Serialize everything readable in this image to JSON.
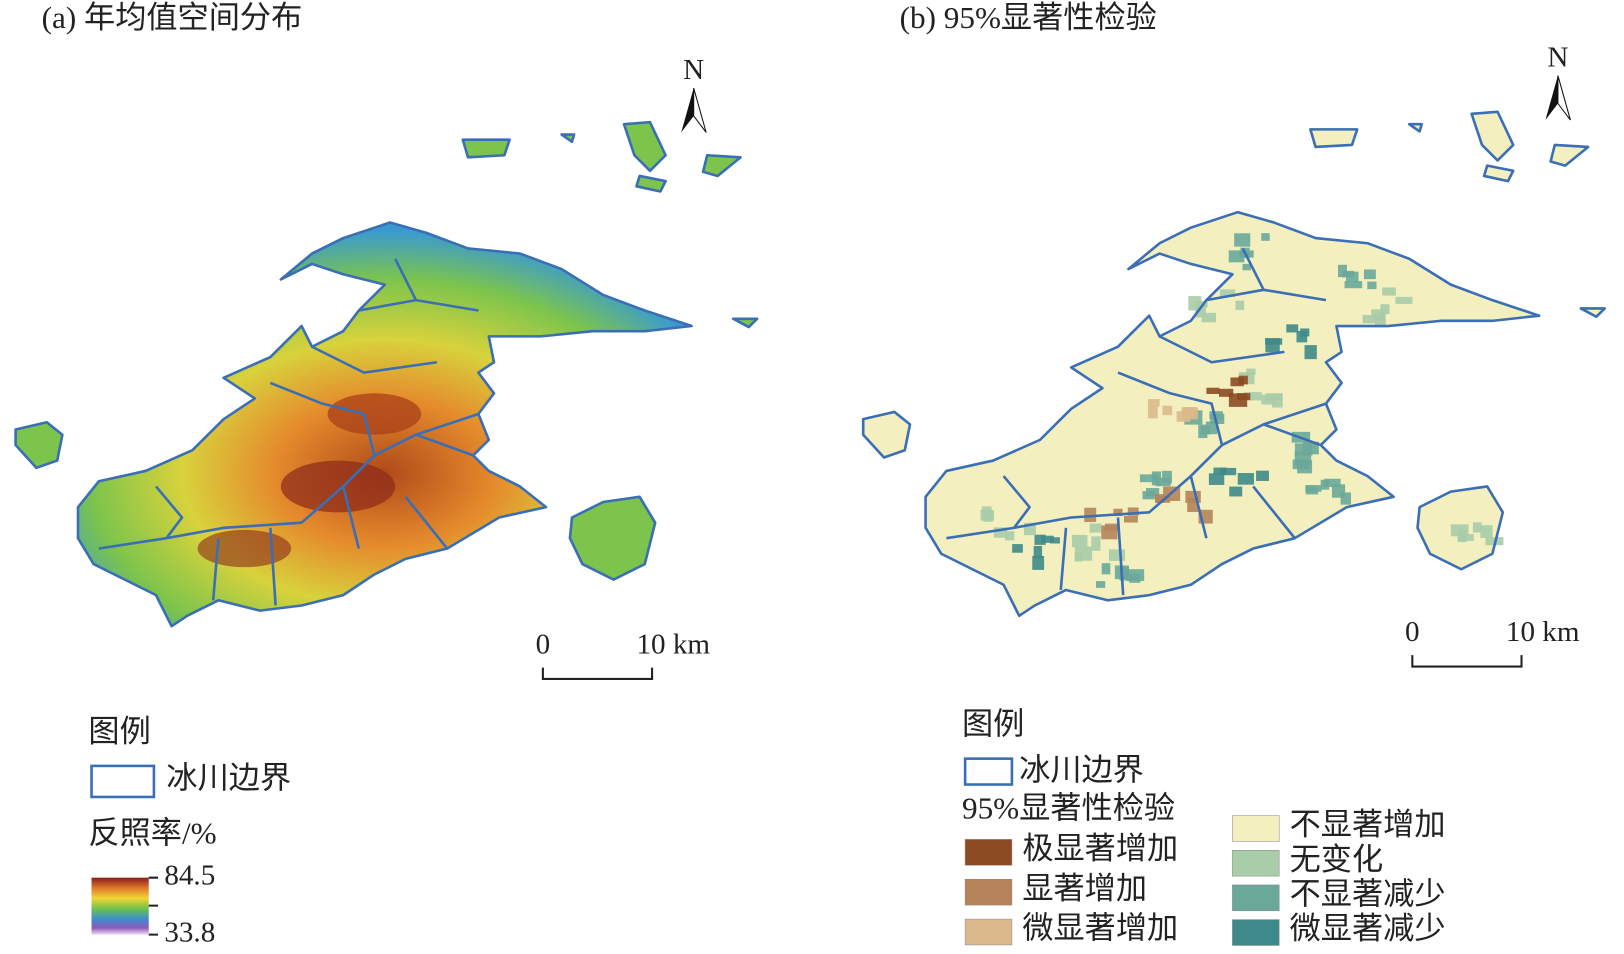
{
  "panel_a": {
    "title": "(a) 年均值空间分布",
    "north": "N",
    "scale_bar": {
      "start": "0",
      "end": "10 km"
    },
    "legend": {
      "title": "图例",
      "boundary": "冰川边界",
      "colorbar_title": "反照率/%",
      "max": 84.5,
      "min": 33.8
    }
  },
  "panel_b": {
    "title": "(b) 95%显著性检验",
    "north": "N",
    "scale_bar": {
      "start": "0",
      "end": "10 km"
    },
    "legend": {
      "title": "图例",
      "boundary": "冰川边界",
      "classes_title": "95%显著性检验",
      "classes": [
        {
          "label": "极显著增加",
          "color": "#8b4a22"
        },
        {
          "label": "显著增加",
          "color": "#b5845a"
        },
        {
          "label": "微显著增加",
          "color": "#dbb98c"
        },
        {
          "label": "不显著增加",
          "color": "#f3efbf"
        },
        {
          "label": "无变化",
          "color": "#a9cca9"
        },
        {
          "label": "不显著减少",
          "color": "#6aa89a"
        },
        {
          "label": "微显著减少",
          "color": "#3e8a8a"
        }
      ]
    }
  }
}
